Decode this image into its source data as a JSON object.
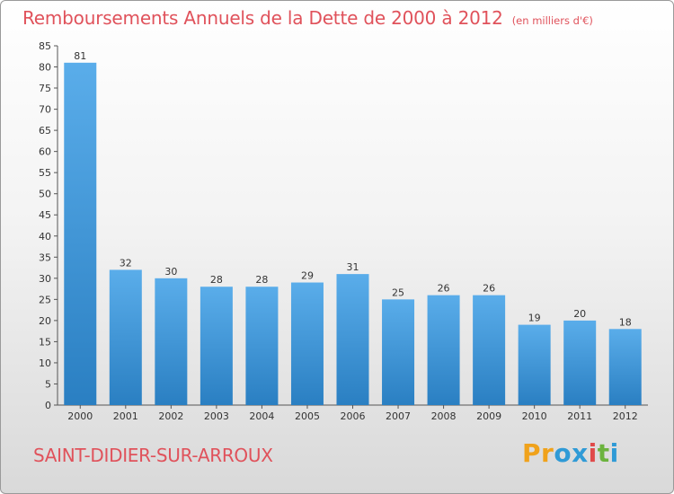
{
  "title": "Remboursements Annuels de la Dette de 2000 à 2012",
  "unit_note": "(en milliers d'€)",
  "commune": "SAINT-DIDIER-SUR-ARROUX",
  "brand": {
    "text": "Proxiti",
    "letters": [
      "P",
      "r",
      "o",
      "x",
      "i",
      "t",
      "i"
    ],
    "colors": [
      "#f0a21b",
      "#f0a21b",
      "#2f9ad6",
      "#2f9ad6",
      "#e04a4a",
      "#6cb33e",
      "#2f9ad6"
    ]
  },
  "colors": {
    "text_accent": "#e0525b",
    "bar_top": "#5aadea",
    "bar_bottom": "#2a7fc2"
  },
  "chart_data": {
    "type": "bar",
    "categories": [
      "2000",
      "2001",
      "2002",
      "2003",
      "2004",
      "2005",
      "2006",
      "2007",
      "2008",
      "2009",
      "2010",
      "2011",
      "2012"
    ],
    "values": [
      81,
      32,
      30,
      28,
      28,
      29,
      31,
      25,
      26,
      26,
      19,
      20,
      18
    ],
    "title": "Remboursements Annuels de la Dette de 2000 à 2012",
    "ylim": [
      0,
      85
    ],
    "yticks": [
      0,
      5,
      10,
      15,
      20,
      25,
      30,
      35,
      40,
      45,
      50,
      55,
      60,
      65,
      70,
      75,
      80,
      85
    ],
    "grid": false,
    "legend": "none"
  }
}
